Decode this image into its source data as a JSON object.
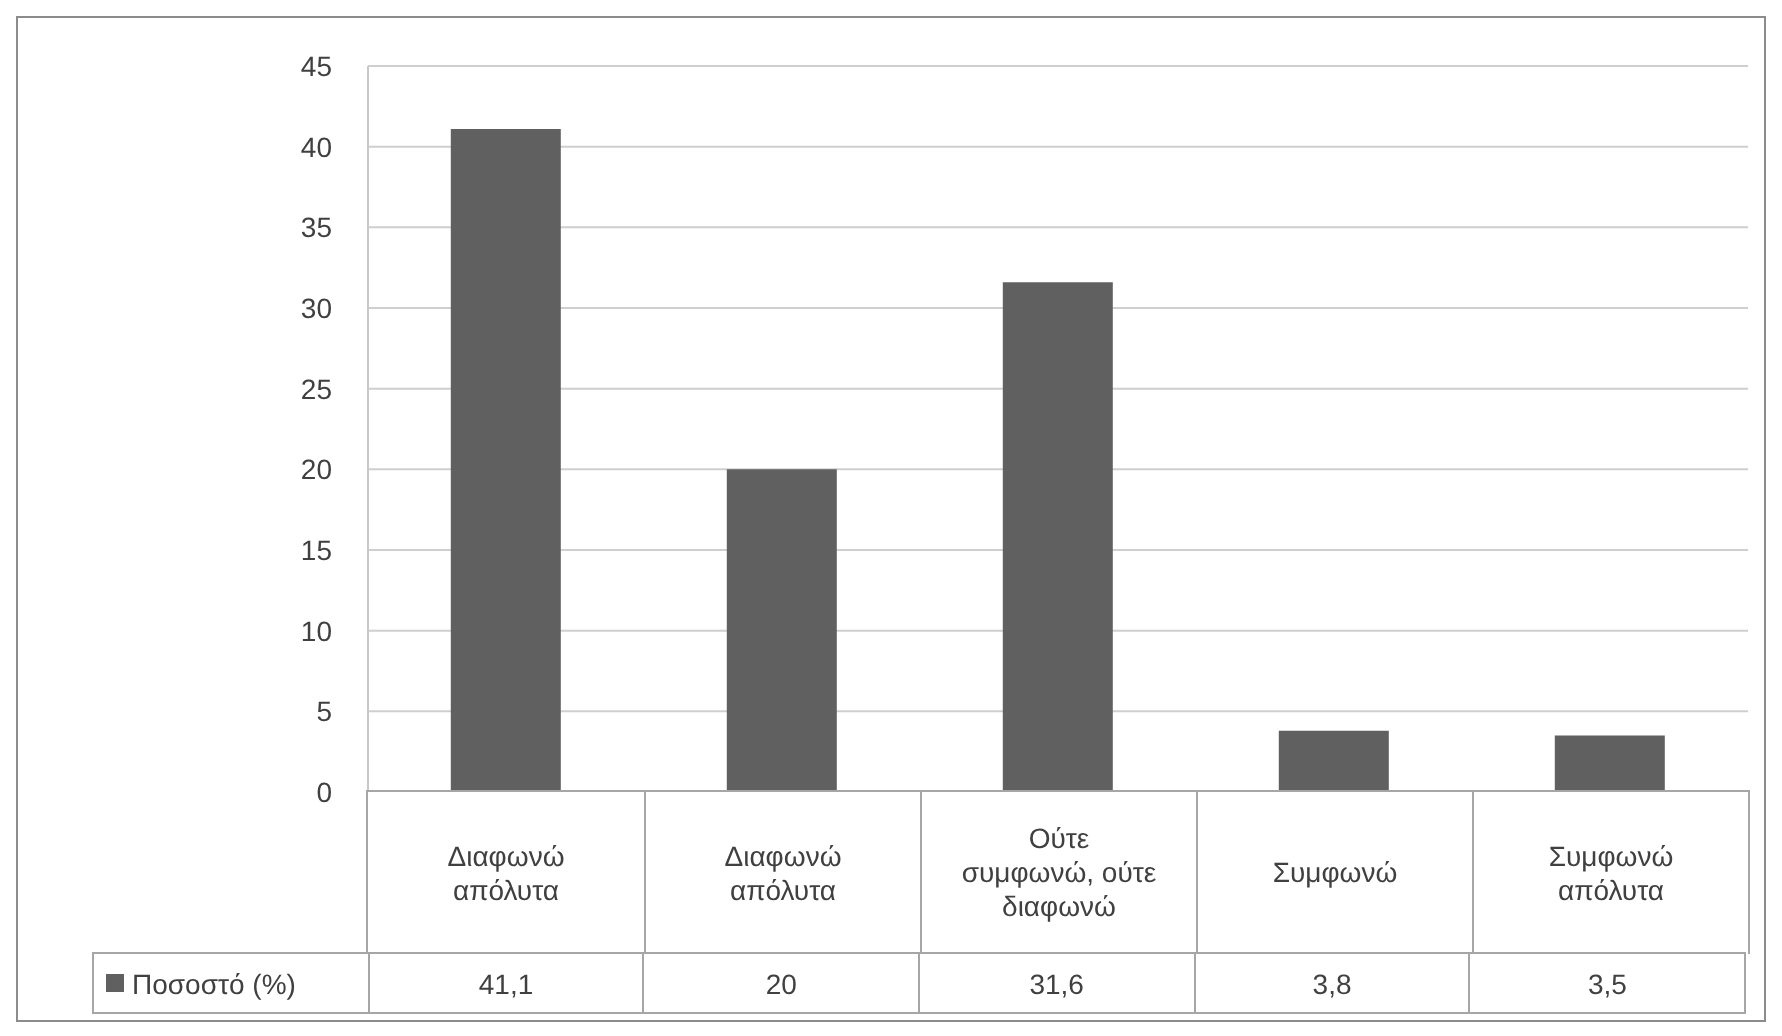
{
  "chart_data": {
    "type": "bar",
    "categories": [
      "Διαφωνώ απόλυτα",
      "Διαφωνώ απόλυτα",
      "Ούτε συμφωνώ, ούτε διαφωνώ",
      "Συμφωνώ",
      "Συμφωνώ απόλυτα"
    ],
    "series": [
      {
        "name": "Ποσοστό (%)",
        "color": "#606060",
        "values": [
          41.1,
          20,
          31.6,
          3.8,
          3.5
        ],
        "value_labels": [
          "41,1",
          "20",
          "31,6",
          "3,8",
          "3,5"
        ]
      }
    ],
    "ylim": [
      0,
      45
    ],
    "yticks": [
      0,
      5,
      10,
      15,
      20,
      25,
      30,
      35,
      40,
      45
    ],
    "grid": "y",
    "legend": "bottom left"
  }
}
